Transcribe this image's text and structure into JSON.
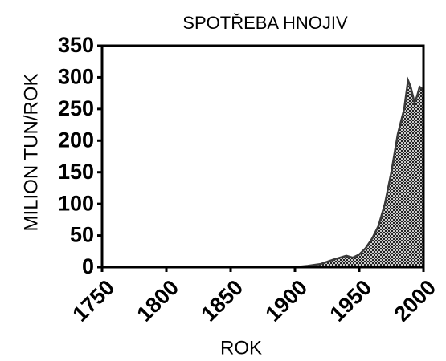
{
  "chart_data": {
    "type": "area",
    "title": "SPOTŘEBA HNOJIV",
    "x_label": "ROK",
    "y_label": "MILION TUN/ROK",
    "x": [
      1750,
      1800,
      1850,
      1900,
      1910,
      1920,
      1930,
      1940,
      1945,
      1950,
      1955,
      1960,
      1965,
      1970,
      1975,
      1980,
      1985,
      1988,
      1990,
      1993,
      1995,
      1997,
      2000
    ],
    "values": [
      0,
      0,
      0,
      0,
      2,
      5,
      12,
      18,
      15,
      20,
      30,
      45,
      65,
      100,
      150,
      210,
      250,
      295,
      285,
      260,
      270,
      285,
      280
    ],
    "color": "#3a3a3a",
    "xlim": [
      1750,
      2000
    ],
    "xticks": [
      1750,
      1800,
      1850,
      1900,
      1950,
      2000
    ],
    "ylim": [
      0,
      350
    ],
    "yticks": [
      0,
      50,
      100,
      150,
      200,
      250,
      300,
      350
    ]
  }
}
